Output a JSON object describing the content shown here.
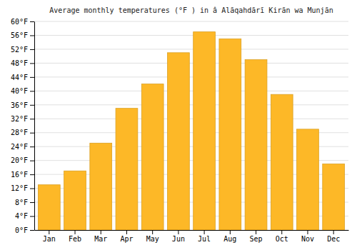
{
  "chart_data": {
    "type": "bar",
    "title": "Average monthly temperatures (°F ) in â Alāqahdārī Kirān wa Munjān",
    "categories": [
      "Jan",
      "Feb",
      "Mar",
      "Apr",
      "May",
      "Jun",
      "Jul",
      "Aug",
      "Sep",
      "Oct",
      "Nov",
      "Dec"
    ],
    "values": [
      13,
      17,
      25,
      35,
      42,
      51,
      57,
      55,
      49,
      39,
      29,
      19
    ],
    "color": "#FDB827",
    "ylim": [
      0,
      60
    ],
    "yticks": [
      {
        "value": 0,
        "label": "0°F"
      },
      {
        "value": 4,
        "label": "4°F"
      },
      {
        "value": 8,
        "label": "8°F"
      },
      {
        "value": 12,
        "label": "12°F"
      },
      {
        "value": 16,
        "label": "16°F"
      },
      {
        "value": 20,
        "label": "20°F"
      },
      {
        "value": 24,
        "label": "24°F"
      },
      {
        "value": 28,
        "label": "28°F"
      },
      {
        "value": 32,
        "label": "32°F"
      },
      {
        "value": 36,
        "label": "36°F"
      },
      {
        "value": 40,
        "label": "40°F"
      },
      {
        "value": 44,
        "label": "44°F"
      },
      {
        "value": 48,
        "label": "48°F"
      },
      {
        "value": 52,
        "label": "52°F"
      },
      {
        "value": 56,
        "label": "56°F"
      },
      {
        "value": 60,
        "label": "60°F"
      }
    ],
    "grid": true
  }
}
